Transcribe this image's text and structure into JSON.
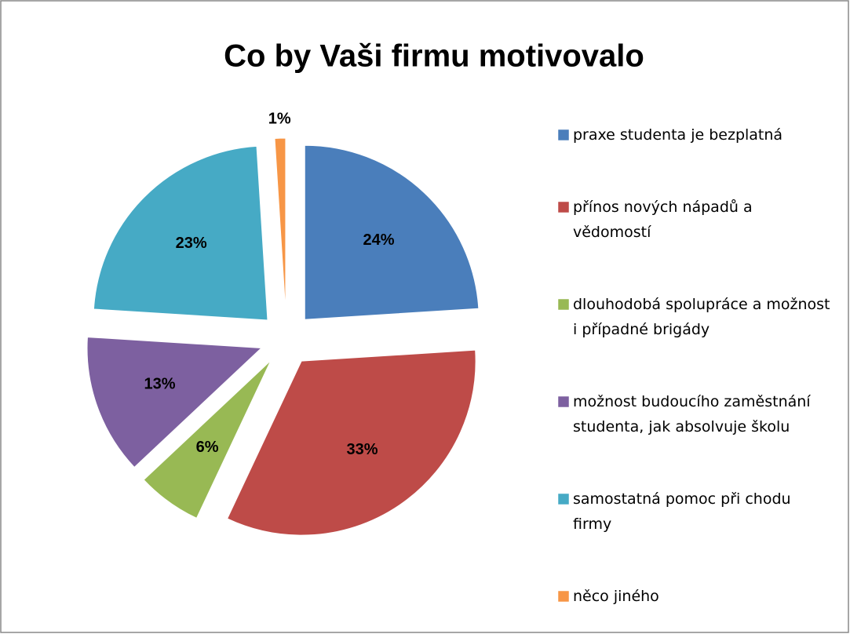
{
  "chart_data": {
    "type": "pie",
    "title": "Co by Vaši firmu motivovalo",
    "categories": [
      "praxe studenta je bezplatná",
      "přínos nových nápadů a vědomostí",
      "dlouhodobá spolupráce a možnost i případné brigády",
      "možnost budoucího zaměstnání studenta, jak absolvuje školu",
      "samostatná pomoc při chodu firmy",
      "něco jiného"
    ],
    "values": [
      24,
      33,
      6,
      13,
      23,
      1
    ],
    "value_labels": [
      "24%",
      "33%",
      "6%",
      "13%",
      "23%",
      "1%"
    ],
    "colors": [
      "#4a7ebb",
      "#be4b48",
      "#98b954",
      "#7d60a0",
      "#46aac5",
      "#f79646"
    ],
    "exploded": true,
    "legend": "right"
  }
}
